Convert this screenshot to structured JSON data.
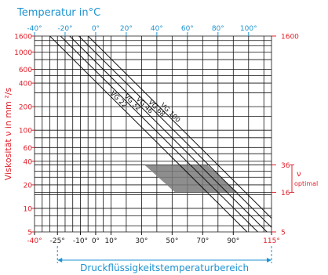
{
  "chart_data": {
    "type": "line",
    "top_axis": {
      "title": "Temperatur   in°C",
      "min": -40,
      "max": 100,
      "ticks": [
        -40,
        -20,
        0,
        20,
        40,
        60,
        80,
        100
      ],
      "tick_labels": [
        "-40°",
        "-20°",
        "0°",
        "20°",
        "40°",
        "60°",
        "80°",
        "100°"
      ],
      "color": "#1d93d1"
    },
    "bottom_axis": {
      "labels": [
        {
          "value": -40,
          "text": "-40°",
          "color": "#e0202b"
        },
        {
          "value": -25,
          "text": "-25°",
          "color": "#222222"
        },
        {
          "value": -10,
          "text": "-10°",
          "color": "#222222"
        },
        {
          "value": 0,
          "text": "0°",
          "color": "#222222"
        },
        {
          "value": 10,
          "text": "10°",
          "color": "#222222"
        },
        {
          "value": 30,
          "text": "30°",
          "color": "#222222"
        },
        {
          "value": 50,
          "text": "50°",
          "color": "#222222"
        },
        {
          "value": 70,
          "text": "70°",
          "color": "#222222"
        },
        {
          "value": 90,
          "text": "90°",
          "color": "#222222"
        },
        {
          "value": 115,
          "text": "115°",
          "color": "#e0202b"
        }
      ]
    },
    "y_axis": {
      "title": "Viskosität  ν in mm ²/s",
      "scale": "log",
      "min": 5,
      "max": 1600,
      "tick_labels": [
        {
          "value": 1600,
          "text": "1600"
        },
        {
          "value": 1000,
          "text": "1000"
        },
        {
          "value": 600,
          "text": "600"
        },
        {
          "value": 400,
          "text": "400"
        },
        {
          "value": 200,
          "text": "200"
        },
        {
          "value": 100,
          "text": "100"
        },
        {
          "value": 60,
          "text": "60"
        },
        {
          "value": 40,
          "text": "40"
        },
        {
          "value": 20,
          "text": "20"
        },
        {
          "value": 10,
          "text": "10"
        },
        {
          "value": 5,
          "text": "5"
        }
      ],
      "gridlines": [
        1600,
        1400,
        1200,
        1000,
        800,
        600,
        500,
        400,
        300,
        200,
        150,
        100,
        80,
        60,
        50,
        40,
        36,
        30,
        25,
        20,
        16,
        15,
        10,
        8,
        6,
        5
      ],
      "color": "#e0202b"
    },
    "right_axis": {
      "labels": [
        {
          "value": 1600,
          "text": "1600"
        },
        {
          "value": 36,
          "text": "36"
        },
        {
          "value": 16,
          "text": "16"
        },
        {
          "value": 5,
          "text": "5"
        }
      ],
      "optimal_label": "ν",
      "optimal_sub": "optimal",
      "optimal_range": [
        16,
        36
      ]
    },
    "vertical_grid_temps": [
      -40,
      -35,
      -30,
      -25,
      -20,
      -15,
      -10,
      -5,
      0,
      5,
      10,
      20,
      30,
      40,
      50,
      60,
      70,
      80,
      90,
      100,
      110,
      115
    ],
    "series": [
      {
        "name": "VG 22",
        "label_text": "VG 22",
        "x": [
          -30,
          99
        ],
        "y": [
          1600,
          5
        ]
      },
      {
        "name": "VG 32",
        "label_text": "VG 32",
        "x": [
          -23,
          106
        ],
        "y": [
          1600,
          5
        ]
      },
      {
        "name": "VG 46",
        "label_text": "VG 46",
        "x": [
          -17,
          112
        ],
        "y": [
          1600,
          5
        ]
      },
      {
        "name": "VG 68",
        "label_text": "VG 68",
        "x": [
          -11,
          118
        ],
        "y": [
          1600,
          5
        ]
      },
      {
        "name": "VG 100",
        "label_text": "VG 100",
        "x": [
          -5,
          124
        ],
        "y": [
          1600,
          5
        ]
      }
    ],
    "optimal_region": {
      "viscosity_range": [
        16,
        36
      ],
      "corners": [
        [
          32,
          36
        ],
        [
          73,
          36
        ],
        [
          93,
          16
        ],
        [
          52,
          16
        ]
      ],
      "color": "#7a7a7a"
    },
    "range_annotation": {
      "text": "Druckflüssigkeitstemperaturbereich",
      "from": -25,
      "to": 115,
      "color": "#1d93d1"
    }
  }
}
